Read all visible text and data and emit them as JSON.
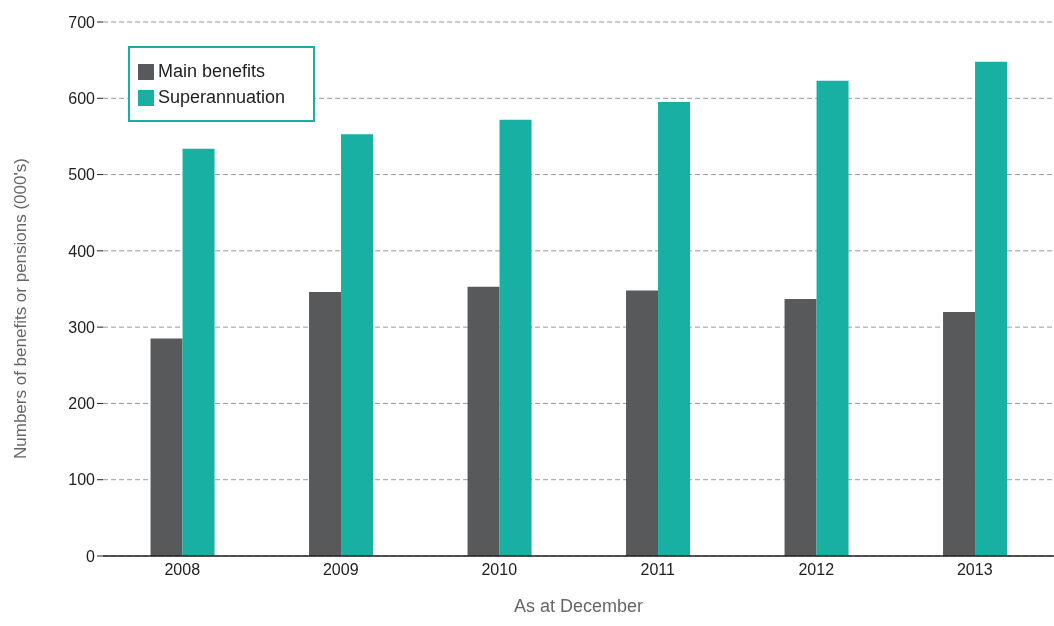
{
  "chart_data": {
    "type": "bar",
    "xlabel": "As at December",
    "ylabel": "Numbers of benefits or pensions (000's)",
    "categories": [
      "2008",
      "2009",
      "2010",
      "2011",
      "2012",
      "2013"
    ],
    "series": [
      {
        "name": "Main benefits",
        "color": "#58595b",
        "values": [
          285,
          346,
          353,
          348,
          337,
          320
        ]
      },
      {
        "name": "Superannuation",
        "color": "#17b0a3",
        "values": [
          534,
          553,
          572,
          595,
          623,
          648
        ]
      }
    ],
    "ylim": [
      0,
      700
    ],
    "yticks": [
      0,
      100,
      200,
      300,
      400,
      500,
      600,
      700
    ],
    "grid": "y",
    "legend": "top left"
  }
}
